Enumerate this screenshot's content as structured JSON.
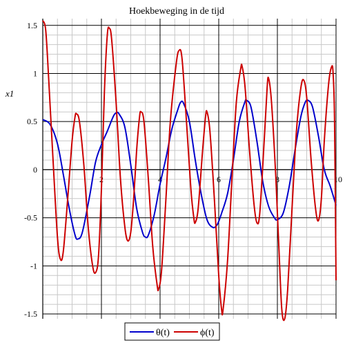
{
  "chart_data": {
    "type": "line",
    "title": "Hoekbeweging in de tijd",
    "xlabel": "",
    "ylabel": "x1",
    "xlim": [
      0,
      10
    ],
    "ylim": [
      -1.55,
      1.57
    ],
    "grid": true,
    "legend_position": "bottom",
    "x_ticks": [
      {
        "value": 2,
        "label": "2"
      },
      {
        "value": 4,
        "label": "4"
      },
      {
        "value": 6,
        "label": "6"
      },
      {
        "value": 8,
        "label": "8"
      },
      {
        "value": 10,
        "label": "10"
      }
    ],
    "y_ticks": [
      {
        "value": 1.5,
        "label": "1.5"
      },
      {
        "value": 1,
        "label": "1"
      },
      {
        "value": 0.5,
        "label": "0.5"
      },
      {
        "value": 0,
        "label": "0"
      },
      {
        "value": -0.5,
        "label": "-0.5"
      },
      {
        "value": -1,
        "label": "-1"
      },
      {
        "value": -1.5,
        "label": "-1.5"
      }
    ],
    "series": [
      {
        "name": "θ(t)",
        "color": "#0000cc",
        "points": [
          [
            0,
            0.52
          ],
          [
            0.25,
            0.47
          ],
          [
            0.5,
            0.27
          ],
          [
            0.7,
            -0.05
          ],
          [
            0.9,
            -0.4
          ],
          [
            1.1,
            -0.68
          ],
          [
            1.2,
            -0.72
          ],
          [
            1.35,
            -0.65
          ],
          [
            1.6,
            -0.27
          ],
          [
            1.8,
            0.08
          ],
          [
            2.0,
            0.26
          ],
          [
            2.2,
            0.4
          ],
          [
            2.4,
            0.55
          ],
          [
            2.5,
            0.59
          ],
          [
            2.6,
            0.58
          ],
          [
            2.8,
            0.44
          ],
          [
            3.0,
            0.05
          ],
          [
            3.2,
            -0.4
          ],
          [
            3.4,
            -0.65
          ],
          [
            3.5,
            -0.7
          ],
          [
            3.6,
            -0.68
          ],
          [
            3.8,
            -0.47
          ],
          [
            4.0,
            -0.15
          ],
          [
            4.2,
            0.12
          ],
          [
            4.4,
            0.42
          ],
          [
            4.6,
            0.62
          ],
          [
            4.7,
            0.7
          ],
          [
            4.8,
            0.69
          ],
          [
            5.0,
            0.5
          ],
          [
            5.2,
            0.1
          ],
          [
            5.4,
            -0.25
          ],
          [
            5.6,
            -0.52
          ],
          [
            5.8,
            -0.6
          ],
          [
            5.95,
            -0.57
          ],
          [
            6.1,
            -0.45
          ],
          [
            6.3,
            -0.25
          ],
          [
            6.5,
            0.1
          ],
          [
            6.7,
            0.5
          ],
          [
            6.9,
            0.71
          ],
          [
            6.95,
            0.72
          ],
          [
            7.1,
            0.65
          ],
          [
            7.3,
            0.3
          ],
          [
            7.5,
            -0.12
          ],
          [
            7.7,
            -0.38
          ],
          [
            7.9,
            -0.5
          ],
          [
            8.0,
            -0.52
          ],
          [
            8.2,
            -0.45
          ],
          [
            8.4,
            -0.18
          ],
          [
            8.6,
            0.2
          ],
          [
            8.8,
            0.55
          ],
          [
            8.95,
            0.7
          ],
          [
            9.05,
            0.72
          ],
          [
            9.2,
            0.65
          ],
          [
            9.4,
            0.35
          ],
          [
            9.6,
            0.0
          ],
          [
            9.8,
            -0.17
          ],
          [
            10.0,
            -0.37
          ]
        ]
      },
      {
        "name": "ϕ(t)",
        "color": "#cc0000",
        "points": [
          [
            0,
            1.55
          ],
          [
            0.1,
            1.45
          ],
          [
            0.2,
            0.95
          ],
          [
            0.35,
            0.1
          ],
          [
            0.5,
            -0.7
          ],
          [
            0.6,
            -0.93
          ],
          [
            0.7,
            -0.85
          ],
          [
            0.85,
            -0.3
          ],
          [
            1.0,
            0.3
          ],
          [
            1.1,
            0.55
          ],
          [
            1.15,
            0.58
          ],
          [
            1.25,
            0.5
          ],
          [
            1.4,
            0.05
          ],
          [
            1.55,
            -0.6
          ],
          [
            1.7,
            -1.0
          ],
          [
            1.8,
            -1.07
          ],
          [
            1.9,
            -0.9
          ],
          [
            2.0,
            -0.2
          ],
          [
            2.1,
            0.8
          ],
          [
            2.2,
            1.4
          ],
          [
            2.27,
            1.47
          ],
          [
            2.35,
            1.35
          ],
          [
            2.5,
            0.7
          ],
          [
            2.65,
            -0.1
          ],
          [
            2.8,
            -0.6
          ],
          [
            2.9,
            -0.74
          ],
          [
            3.0,
            -0.65
          ],
          [
            3.1,
            -0.3
          ],
          [
            3.2,
            0.2
          ],
          [
            3.3,
            0.55
          ],
          [
            3.35,
            0.6
          ],
          [
            3.45,
            0.5
          ],
          [
            3.6,
            -0.1
          ],
          [
            3.75,
            -0.8
          ],
          [
            3.9,
            -1.2
          ],
          [
            3.95,
            -1.24
          ],
          [
            4.05,
            -1.05
          ],
          [
            4.2,
            -0.3
          ],
          [
            4.35,
            0.5
          ],
          [
            4.55,
            1.1
          ],
          [
            4.65,
            1.24
          ],
          [
            4.75,
            1.15
          ],
          [
            4.9,
            0.5
          ],
          [
            5.05,
            -0.2
          ],
          [
            5.15,
            -0.5
          ],
          [
            5.2,
            -0.55
          ],
          [
            5.3,
            -0.4
          ],
          [
            5.45,
            0.2
          ],
          [
            5.55,
            0.55
          ],
          [
            5.6,
            0.6
          ],
          [
            5.7,
            0.4
          ],
          [
            5.85,
            -0.3
          ],
          [
            6.0,
            -1.1
          ],
          [
            6.1,
            -1.46
          ],
          [
            6.15,
            -1.45
          ],
          [
            6.3,
            -0.95
          ],
          [
            6.45,
            -0.1
          ],
          [
            6.6,
            0.7
          ],
          [
            6.75,
            1.05
          ],
          [
            6.8,
            1.07
          ],
          [
            6.9,
            0.85
          ],
          [
            7.05,
            0.2
          ],
          [
            7.2,
            -0.35
          ],
          [
            7.3,
            -0.55
          ],
          [
            7.4,
            -0.45
          ],
          [
            7.55,
            0.3
          ],
          [
            7.65,
            0.85
          ],
          [
            7.7,
            0.95
          ],
          [
            7.8,
            0.7
          ],
          [
            7.95,
            -0.1
          ],
          [
            8.05,
            -0.8
          ],
          [
            8.15,
            -1.45
          ],
          [
            8.25,
            -1.55
          ],
          [
            8.35,
            -1.25
          ],
          [
            8.5,
            -0.4
          ],
          [
            8.65,
            0.4
          ],
          [
            8.8,
            0.85
          ],
          [
            8.9,
            0.93
          ],
          [
            9.0,
            0.75
          ],
          [
            9.15,
            0.1
          ],
          [
            9.3,
            -0.4
          ],
          [
            9.4,
            -0.53
          ],
          [
            9.5,
            -0.3
          ],
          [
            9.6,
            0.3
          ],
          [
            9.75,
            0.9
          ],
          [
            9.85,
            1.07
          ],
          [
            9.9,
            1.0
          ],
          [
            9.95,
            0.5
          ],
          [
            10.0,
            -1.15
          ]
        ]
      }
    ]
  }
}
